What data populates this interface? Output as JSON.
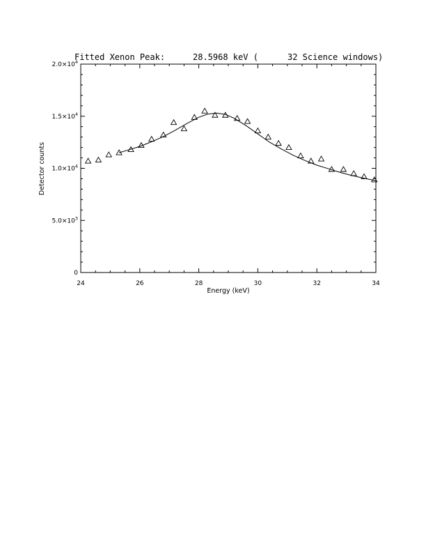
{
  "chart_data": {
    "type": "scatter",
    "title_parts": [
      "Fitted Xenon Peak:",
      "28.5968 keV (",
      "32 Science windows)"
    ],
    "xlabel": "Energy (keV)",
    "ylabel": "Detector counts",
    "xlim": [
      24,
      34
    ],
    "ylim": [
      0,
      20000
    ],
    "x_ticks": [
      24,
      26,
      28,
      30,
      32,
      34
    ],
    "y_ticks": [
      {
        "value": 0,
        "mantissa": "0",
        "exp": ""
      },
      {
        "value": 5000,
        "mantissa": "5.0×10",
        "exp": "3"
      },
      {
        "value": 10000,
        "mantissa": "1.0×10",
        "exp": "4"
      },
      {
        "value": 15000,
        "mantissa": "1.5×10",
        "exp": "4"
      },
      {
        "value": 20000,
        "mantissa": "2.0×10",
        "exp": "4"
      }
    ],
    "grid": false,
    "series": [
      {
        "kind": "points",
        "marker": "triangle-open",
        "x": [
          24.25,
          24.6,
          24.95,
          25.3,
          25.7,
          26.05,
          26.4,
          26.8,
          27.15,
          27.5,
          27.85,
          28.2,
          28.55,
          28.9,
          29.3,
          29.65,
          30.0,
          30.35,
          30.7,
          31.05,
          31.45,
          31.8,
          32.15,
          32.5,
          32.9,
          33.25,
          33.6,
          33.95
        ],
        "y": [
          10700,
          10800,
          11300,
          11500,
          11800,
          12200,
          12800,
          13200,
          14400,
          13800,
          14900,
          15500,
          15100,
          15100,
          14800,
          14500,
          13600,
          13000,
          12400,
          12000,
          11200,
          10700,
          10900,
          9900,
          9900,
          9500,
          9200,
          8900
        ]
      },
      {
        "kind": "fit",
        "x": [
          25.3,
          25.6,
          26.0,
          26.4,
          26.8,
          27.2,
          27.6,
          28.0,
          28.3,
          28.6,
          28.9,
          29.2,
          29.6,
          30.0,
          30.4,
          30.8,
          31.2,
          31.6,
          32.0,
          32.4,
          32.8,
          33.2,
          33.6,
          34.0
        ],
        "y": [
          11500,
          11750,
          12100,
          12550,
          13050,
          13650,
          14300,
          14900,
          15200,
          15300,
          15180,
          14800,
          14100,
          13300,
          12500,
          11850,
          11250,
          10750,
          10300,
          9950,
          9600,
          9300,
          9050,
          8800
        ]
      }
    ]
  }
}
